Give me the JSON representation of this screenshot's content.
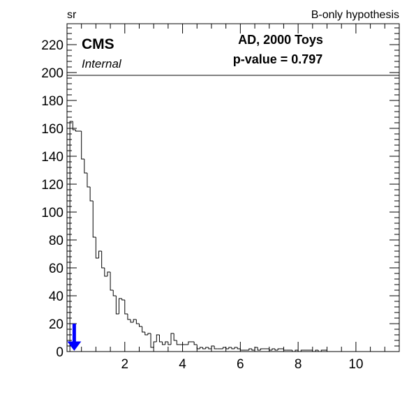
{
  "header": {
    "left_label": "sr",
    "right_label": "B-only hypothesis"
  },
  "legend": {
    "experiment": "CMS",
    "status": "Internal",
    "toys_text": "AD, 2000 Toys",
    "pvalue_text": "p-value = 0.797"
  },
  "colors": {
    "axis": "#000000",
    "histogram": "#000000",
    "observed_arrow": "#0000ff"
  },
  "chart_data": {
    "type": "histogram",
    "title": "",
    "xlabel": "",
    "ylabel": "",
    "xlim": [
      0,
      11.5
    ],
    "ylim": [
      0,
      235
    ],
    "x_ticks": [
      2,
      4,
      6,
      8,
      10
    ],
    "y_ticks": [
      0,
      20,
      40,
      60,
      80,
      100,
      120,
      140,
      160,
      180,
      200,
      220
    ],
    "bin_edges": [
      0.1,
      0.2,
      0.3,
      0.5,
      0.6,
      0.7,
      0.8,
      0.9,
      1.0,
      1.1,
      1.2,
      1.3,
      1.4,
      1.5,
      1.6,
      1.7,
      1.8,
      1.9,
      2.0,
      2.1,
      2.2,
      2.3,
      2.4,
      2.5,
      2.6,
      2.7,
      2.8,
      2.9,
      3.0,
      3.1,
      3.2,
      3.3,
      3.4,
      3.5,
      3.6,
      3.7,
      3.8,
      3.9,
      4.0,
      4.2,
      4.4,
      4.5,
      4.6,
      4.7,
      4.8,
      4.9,
      5.0,
      5.1,
      5.2,
      5.4,
      5.5,
      5.6,
      5.7,
      5.8,
      5.9,
      6.0,
      6.2,
      6.3,
      6.4,
      6.5,
      6.6,
      6.7,
      7.0,
      7.1,
      7.2,
      7.3,
      7.5,
      7.6,
      7.8,
      7.9,
      8.0,
      8.1,
      8.5,
      8.6,
      8.7,
      8.8,
      9.0,
      9.1,
      11.5
    ],
    "bin_counts": [
      165,
      159,
      158,
      138,
      128,
      118,
      108,
      82,
      67,
      72,
      60,
      54,
      57,
      44,
      40,
      27,
      38,
      37,
      27,
      23,
      21,
      23,
      20,
      18,
      14,
      12,
      13,
      3,
      7,
      12,
      7,
      5,
      7,
      5,
      13,
      8,
      5,
      5,
      5,
      7,
      5,
      2,
      3,
      2,
      3,
      2,
      4,
      2,
      2,
      3,
      2,
      3,
      2,
      3,
      2,
      1,
      1,
      2,
      1,
      3,
      1,
      2,
      1,
      2,
      1,
      2,
      1,
      1,
      0,
      1,
      0,
      1,
      0,
      1,
      0,
      1,
      0,
      0
    ],
    "observed": {
      "x": 0.25,
      "arrow_from": 20,
      "arrow_to": 0
    },
    "legend_box_ylim": [
      200,
      235
    ]
  }
}
